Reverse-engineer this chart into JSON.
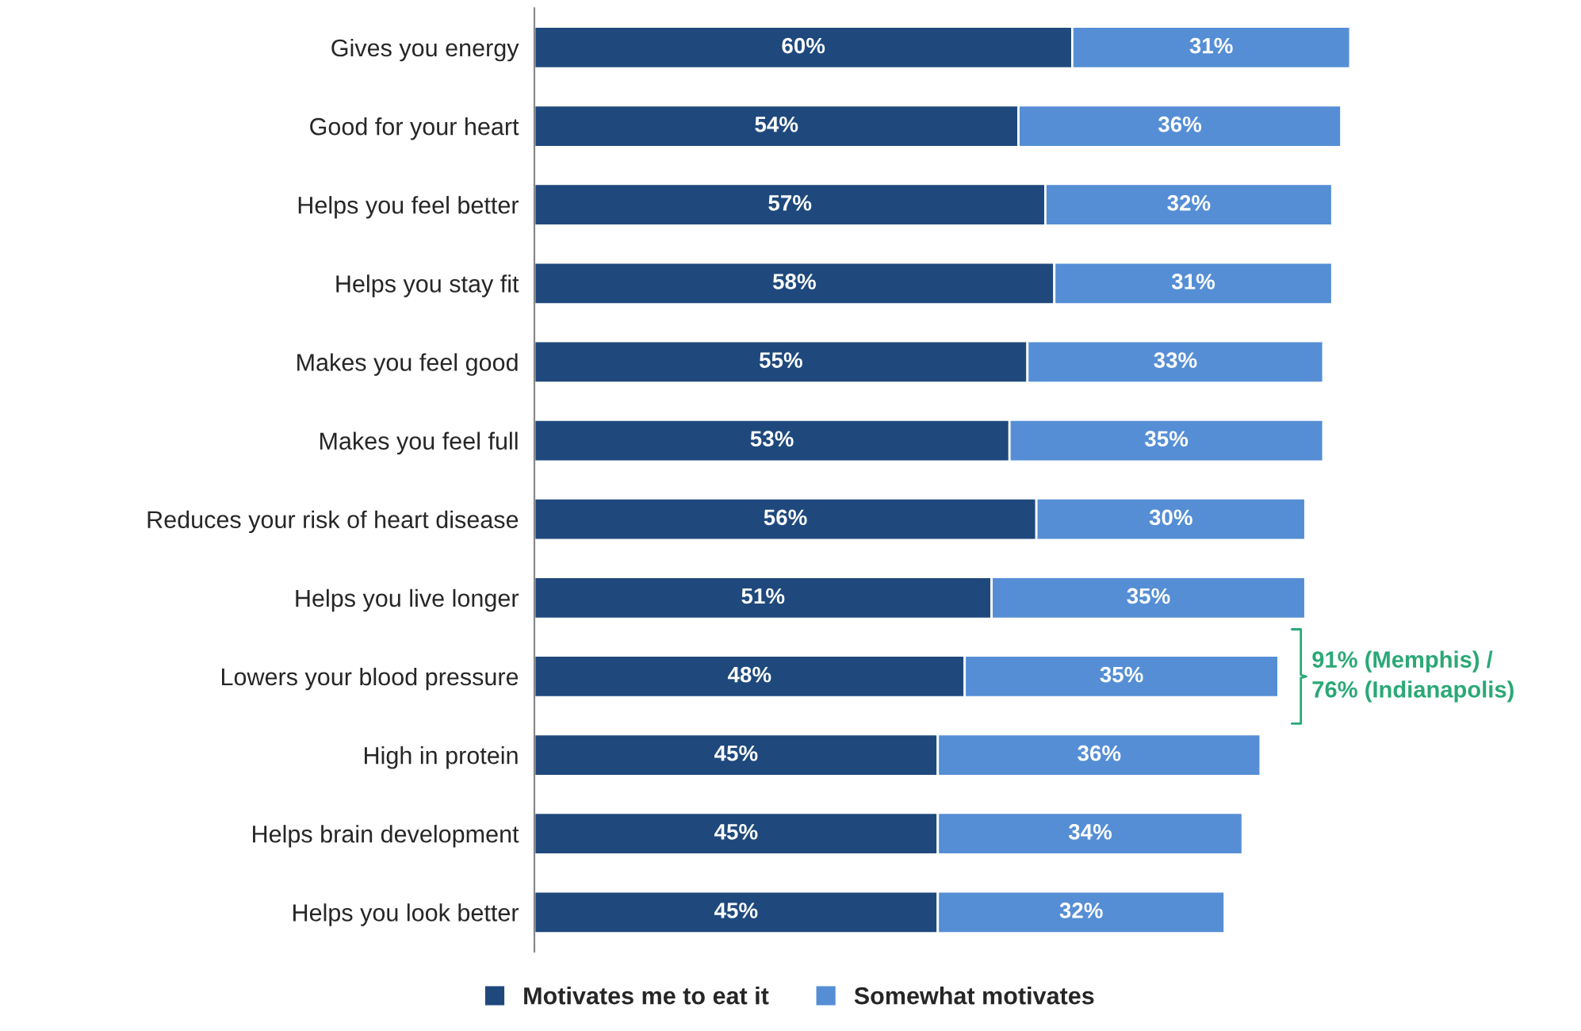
{
  "chart_data": {
    "type": "bar",
    "orientation": "horizontal",
    "stacked": true,
    "categories": [
      "Gives you energy",
      "Good for your heart",
      "Helps you feel better",
      "Helps you stay fit",
      "Makes you feel good",
      "Makes you feel full",
      "Reduces your risk of heart disease",
      "Helps you live longer",
      "Lowers your blood pressure",
      "High in protein",
      "Helps brain development",
      "Helps you look better"
    ],
    "series": [
      {
        "name": "Motivates me to eat it",
        "color": "#1f497d",
        "values": [
          60,
          54,
          57,
          58,
          55,
          53,
          56,
          51,
          48,
          45,
          45,
          45
        ],
        "value_labels": [
          "60%",
          "54%",
          "57%",
          "58%",
          "55%",
          "53%",
          "56%",
          "51%",
          "48%",
          "45%",
          "45%",
          "45%"
        ]
      },
      {
        "name": "Somewhat motivates",
        "color": "#558ed5",
        "values": [
          31,
          36,
          32,
          31,
          33,
          35,
          30,
          35,
          35,
          36,
          34,
          32
        ],
        "value_labels": [
          "31%",
          "36%",
          "32%",
          "31%",
          "33%",
          "35%",
          "30%",
          "35%",
          "35%",
          "36%",
          "34%",
          "32%"
        ]
      }
    ],
    "tick_labels": "y",
    "grid": false,
    "legend": "bottom",
    "annotations": [
      {
        "text": "91% (Memphis) /\n76% (Indianapolis)",
        "x": 83,
        "y": "Lowers your blood pressure"
      }
    ]
  }
}
